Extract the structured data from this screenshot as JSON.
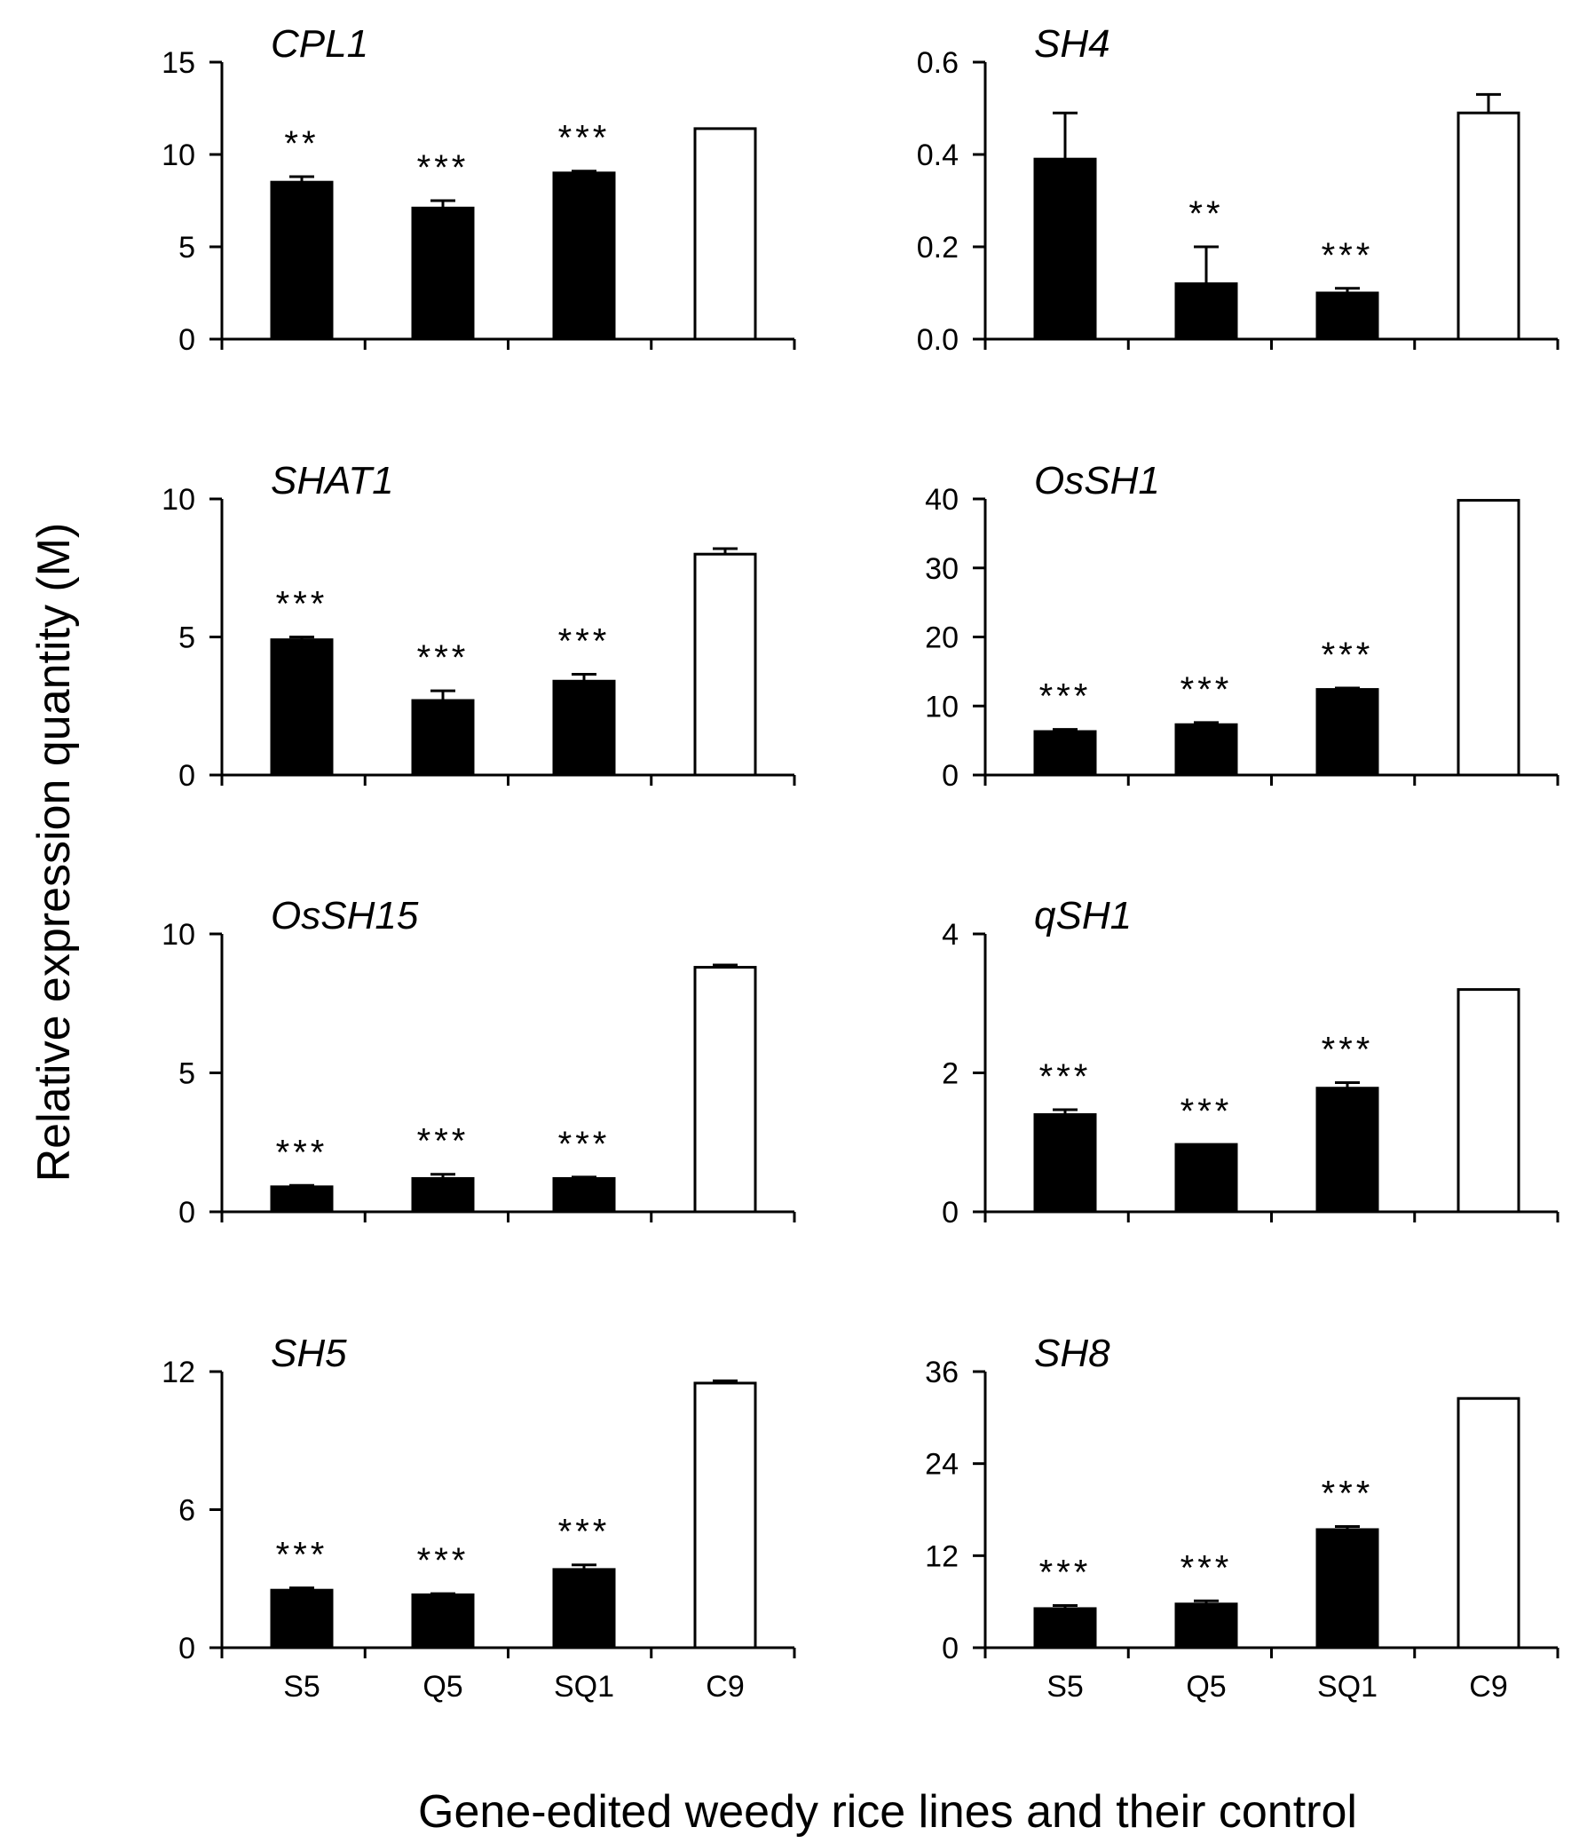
{
  "figure": {
    "y_axis_title": "Relative expression quantity (M)",
    "x_axis_title": "Gene-edited weedy rice lines and their control"
  },
  "chart_data": [
    {
      "type": "bar",
      "title": "CPL1",
      "categories": [
        "S5",
        "Q5",
        "SQ1",
        "C9"
      ],
      "values": [
        8.5,
        7.1,
        9.0,
        11.4
      ],
      "errors": [
        0.3,
        0.4,
        0.1,
        0
      ],
      "significance": [
        "**",
        "***",
        "***",
        ""
      ],
      "ylim": [
        0,
        15
      ],
      "yticks": [
        "0",
        "5",
        "10",
        "15"
      ]
    },
    {
      "type": "bar",
      "title": "SH4",
      "categories": [
        "S5",
        "Q5",
        "SQ1",
        "C9"
      ],
      "values": [
        0.39,
        0.12,
        0.1,
        0.49
      ],
      "errors": [
        0.1,
        0.08,
        0.01,
        0.04
      ],
      "significance": [
        "",
        "**",
        "***",
        ""
      ],
      "ylim": [
        0,
        0.6
      ],
      "yticks": [
        "0.0",
        "0.2",
        "0.4",
        "0.6"
      ]
    },
    {
      "type": "bar",
      "title": "SHAT1",
      "categories": [
        "S5",
        "Q5",
        "SQ1",
        "C9"
      ],
      "values": [
        4.9,
        2.7,
        3.4,
        8.0
      ],
      "errors": [
        0.1,
        0.35,
        0.25,
        0.2
      ],
      "significance": [
        "***",
        "***",
        "***",
        ""
      ],
      "ylim": [
        0,
        10
      ],
      "yticks": [
        "0",
        "5",
        "10"
      ]
    },
    {
      "type": "bar",
      "title": "OsSH1",
      "categories": [
        "S5",
        "Q5",
        "SQ1",
        "C9"
      ],
      "values": [
        6.3,
        7.3,
        12.4,
        39.8
      ],
      "errors": [
        0.3,
        0.3,
        0.2,
        0
      ],
      "significance": [
        "***",
        "***",
        "***",
        ""
      ],
      "ylim": [
        0,
        40
      ],
      "yticks": [
        "0",
        "10",
        "20",
        "30",
        "40"
      ]
    },
    {
      "type": "bar",
      "title": "OsSH15",
      "categories": [
        "S5",
        "Q5",
        "SQ1",
        "C9"
      ],
      "values": [
        0.9,
        1.2,
        1.2,
        8.8
      ],
      "errors": [
        0.05,
        0.15,
        0.05,
        0.08
      ],
      "significance": [
        "***",
        "***",
        "***",
        ""
      ],
      "ylim": [
        0,
        10
      ],
      "yticks": [
        "0",
        "5",
        "10"
      ]
    },
    {
      "type": "bar",
      "title": "qSH1",
      "categories": [
        "S5",
        "Q5",
        "SQ1",
        "C9"
      ],
      "values": [
        1.4,
        0.97,
        1.78,
        3.2
      ],
      "errors": [
        0.07,
        0,
        0.08,
        0
      ],
      "significance": [
        "***",
        "***",
        "***",
        ""
      ],
      "ylim": [
        0,
        4
      ],
      "yticks": [
        "0",
        "2",
        "4"
      ]
    },
    {
      "type": "bar",
      "title": "SH5",
      "categories": [
        "S5",
        "Q5",
        "SQ1",
        "C9"
      ],
      "values": [
        2.5,
        2.3,
        3.4,
        11.5
      ],
      "errors": [
        0.1,
        0.05,
        0.2,
        0.1
      ],
      "significance": [
        "***",
        "***",
        "***",
        ""
      ],
      "ylim": [
        0,
        12
      ],
      "yticks": [
        "0",
        "6",
        "12"
      ]
    },
    {
      "type": "bar",
      "title": "SH8",
      "categories": [
        "S5",
        "Q5",
        "SQ1",
        "C9"
      ],
      "values": [
        5.1,
        5.7,
        15.4,
        32.5
      ],
      "errors": [
        0.4,
        0.4,
        0.4,
        0
      ],
      "significance": [
        "***",
        "***",
        "***",
        ""
      ],
      "ylim": [
        0,
        36
      ],
      "yticks": [
        "0",
        "12",
        "24",
        "36"
      ]
    }
  ]
}
